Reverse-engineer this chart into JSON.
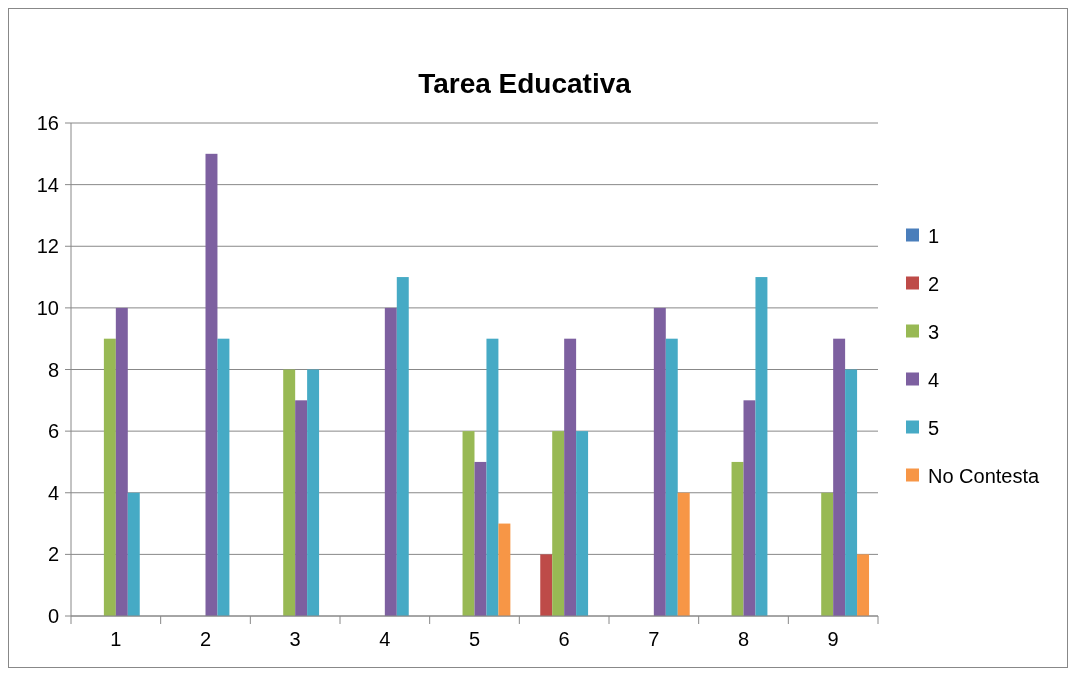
{
  "chart_data": {
    "type": "bar",
    "title": "Tarea Educativa",
    "categories": [
      "1",
      "2",
      "3",
      "4",
      "5",
      "6",
      "7",
      "8",
      "9"
    ],
    "series": [
      {
        "name": "1",
        "color": "#4a7ebb",
        "values": [
          0,
          0,
          0,
          0,
          0,
          0,
          0,
          0,
          0
        ]
      },
      {
        "name": "2",
        "color": "#be4b48",
        "values": [
          0,
          0,
          0,
          0,
          0,
          2,
          0,
          0,
          0
        ]
      },
      {
        "name": "3",
        "color": "#98b954",
        "values": [
          9,
          0,
          8,
          0,
          6,
          6,
          0,
          5,
          4
        ]
      },
      {
        "name": "4",
        "color": "#7d60a0",
        "values": [
          10,
          15,
          7,
          10,
          5,
          9,
          10,
          7,
          9
        ]
      },
      {
        "name": "5",
        "color": "#46aac5",
        "values": [
          4,
          9,
          8,
          11,
          9,
          6,
          9,
          11,
          8
        ]
      },
      {
        "name": "No Contesta",
        "color": "#f79646",
        "values": [
          0,
          0,
          0,
          0,
          3,
          0,
          4,
          0,
          2
        ]
      }
    ],
    "ylim": [
      0,
      16
    ],
    "yticks": [
      0,
      2,
      4,
      6,
      8,
      10,
      12,
      14,
      16
    ],
    "grid": "y",
    "legend": "right"
  }
}
